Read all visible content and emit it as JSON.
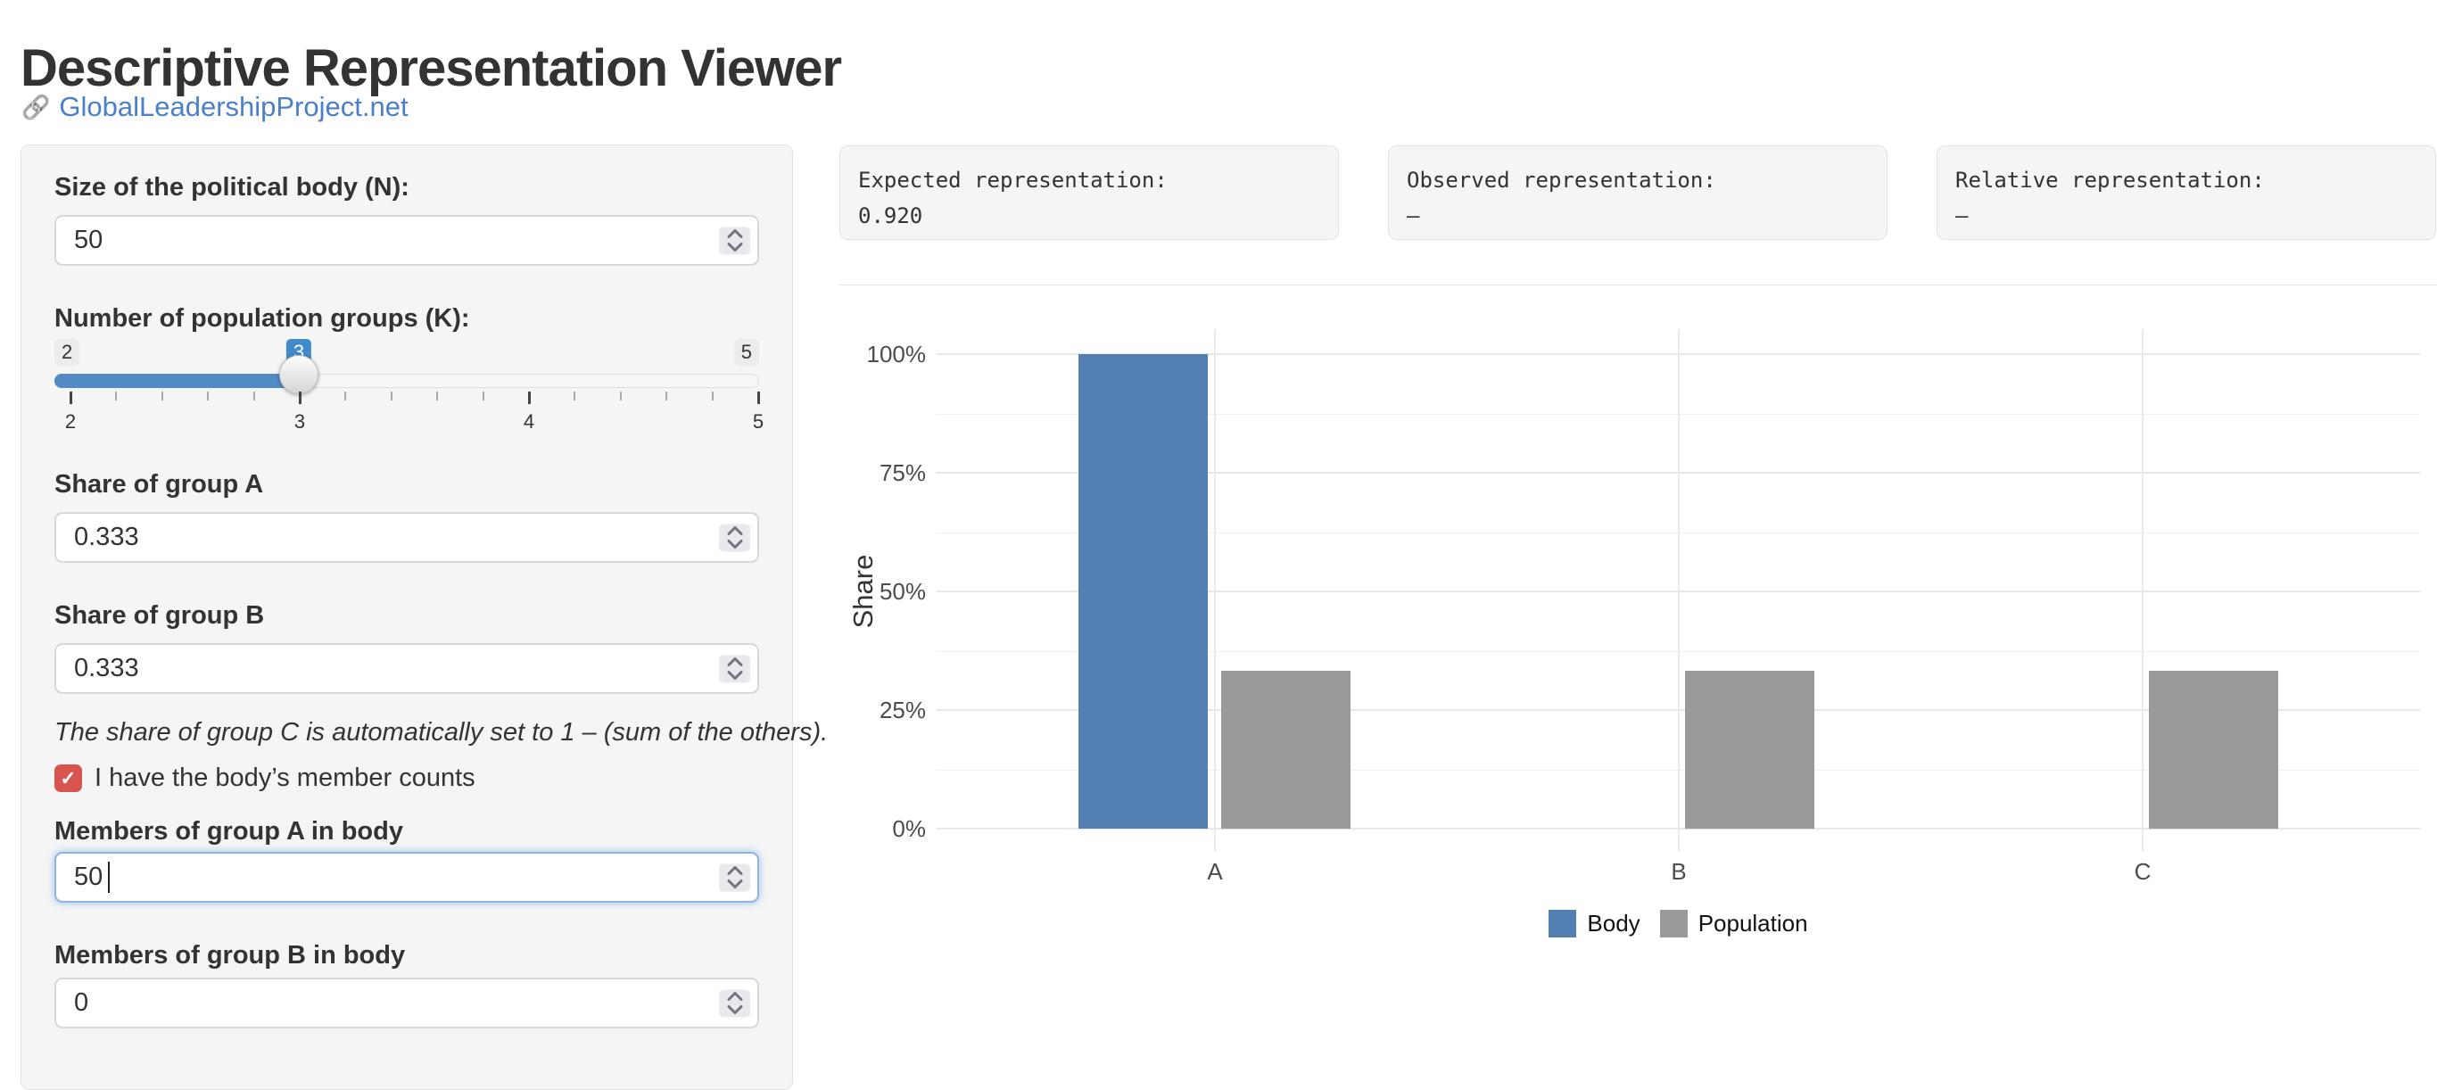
{
  "header": {
    "title": "Descriptive Representation Viewer",
    "link_label": "GlobalLeadershipProject.net"
  },
  "icons": {
    "link": "🔗",
    "check": "✓"
  },
  "sidebar": {
    "n_label": "Size of the political body (N):",
    "n_value": "50",
    "k_label": "Number of population groups (K):",
    "slider": {
      "min_label": "2",
      "max_label": "5",
      "value_label": "3",
      "axis_labels": [
        "2",
        "3",
        "4",
        "5"
      ],
      "accent_color": "#428bca"
    },
    "share_a_label": "Share of group A",
    "share_a_value": "0.333",
    "share_b_label": "Share of group B",
    "share_b_value": "0.333",
    "note": "The share of group C is automatically set to 1 – (sum of the others).",
    "checkbox_label": "I have the body’s member counts",
    "checkbox_checked": true,
    "members_a_label": "Members of group A in body",
    "members_a_value": "50",
    "members_b_label": "Members of group B in body",
    "members_b_value": "0"
  },
  "stat_boxes": [
    {
      "label": "Expected representation:",
      "value": "0.920"
    },
    {
      "label": "Observed representation:",
      "value": "—"
    },
    {
      "label": "Relative representation:",
      "value": "—"
    }
  ],
  "chart_data": {
    "type": "bar",
    "categories": [
      "A",
      "B",
      "C"
    ],
    "series": [
      {
        "name": "Body",
        "color": "#537fb2",
        "values": [
          1.0,
          0,
          0
        ]
      },
      {
        "name": "Population",
        "color": "#9a9a9a",
        "values": [
          0.333,
          0.333,
          0.333
        ]
      }
    ],
    "title": "",
    "xlabel": "",
    "ylabel": "Share",
    "ylim": [
      0,
      1
    ],
    "yticks": [
      {
        "label": "0%",
        "value": 0
      },
      {
        "label": "25%",
        "value": 0.25
      },
      {
        "label": "50%",
        "value": 0.5
      },
      {
        "label": "75%",
        "value": 0.75
      },
      {
        "label": "100%",
        "value": 1
      }
    ],
    "minor_gridlines": [
      0.125,
      0.375,
      0.625,
      0.875
    ],
    "grid": true,
    "legend_position": "bottom"
  }
}
